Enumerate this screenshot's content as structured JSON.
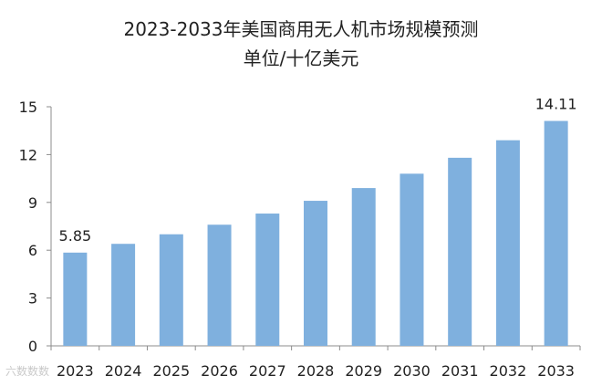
{
  "title": "2023-2033年美国商用无人机市场规模预测",
  "subtitle": "单位/十亿美元",
  "watermark": "六数数数",
  "colors": {
    "bar": "#7fb0de",
    "axis": "#8c8c8c",
    "text": "#222222"
  },
  "chart_data": {
    "type": "bar",
    "title": "2023-2033年美国商用无人机市场规模预测",
    "subtitle": "单位/十亿美元",
    "categories": [
      "2023",
      "2024",
      "2025",
      "2026",
      "2027",
      "2028",
      "2029",
      "2030",
      "2031",
      "2032",
      "2033"
    ],
    "values": [
      5.85,
      6.4,
      7.0,
      7.6,
      8.3,
      9.1,
      9.9,
      10.8,
      11.8,
      12.9,
      14.11
    ],
    "data_labels": [
      {
        "index": 0,
        "text": "5.85"
      },
      {
        "index": 10,
        "text": "14.11"
      }
    ],
    "yticks": [
      "0",
      "3",
      "6",
      "9",
      "12",
      "15"
    ],
    "ylim": [
      0,
      15
    ],
    "xlabel": "",
    "ylabel": "",
    "grid": false,
    "legend": "none"
  }
}
